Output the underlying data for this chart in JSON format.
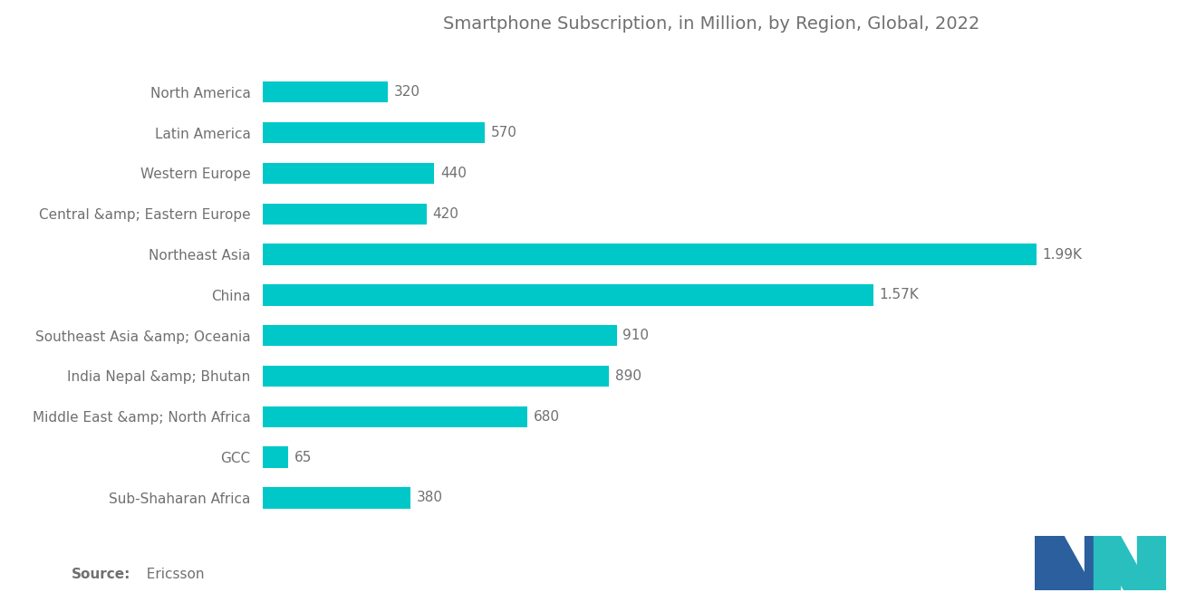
{
  "title": "Smartphone Subscription, in Million, by Region, Global, 2022",
  "source_bold": "Source:",
  "source_normal": "  Ericsson",
  "categories": [
    "Sub-Shaharan Africa",
    "GCC",
    "Middle East &amp; North Africa",
    "India Nepal &amp; Bhutan",
    "Southeast Asia &amp; Oceania",
    "China",
    "Northeast Asia",
    "Central &amp; Eastern Europe",
    "Western Europe",
    "Latin America",
    "North America"
  ],
  "values": [
    380,
    65,
    680,
    890,
    910,
    1570,
    1990,
    420,
    440,
    570,
    320
  ],
  "labels": [
    "380",
    "65",
    "680",
    "890",
    "910",
    "1.57K",
    "1.99K",
    "420",
    "440",
    "570",
    "320"
  ],
  "bar_color": "#00C8C8",
  "background_color": "#ffffff",
  "text_color": "#707070",
  "title_fontsize": 14,
  "label_fontsize": 11,
  "category_fontsize": 11,
  "source_fontsize": 11
}
